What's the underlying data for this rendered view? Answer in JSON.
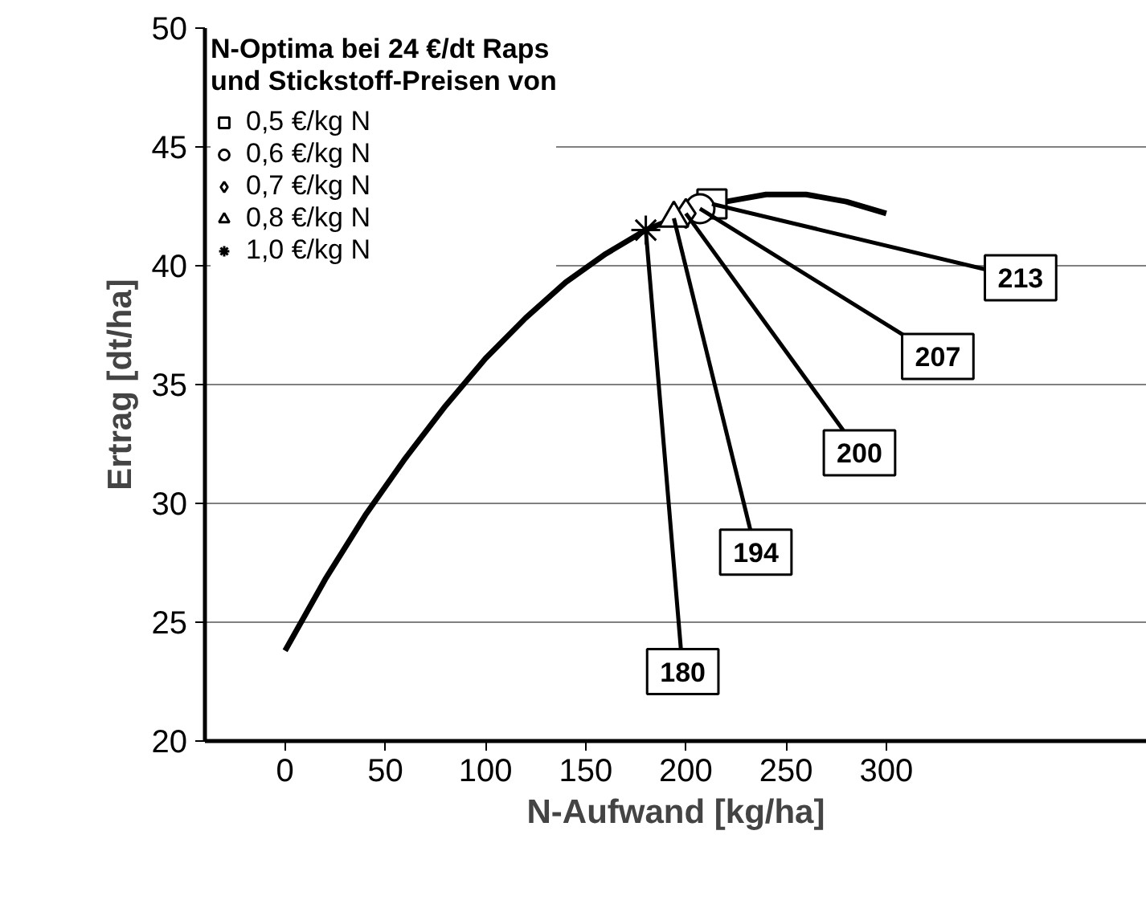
{
  "chart_data": {
    "type": "line",
    "xlabel": "N-Aufwand [kg/ha]",
    "ylabel": "Ertrag [dt/ha]",
    "legend_title": "N-Optima bei 24 €/dt Raps\nund Stickstoff-Preisen von",
    "xlim": [
      -40,
      430
    ],
    "ylim": [
      20,
      50
    ],
    "xticks": [
      0,
      50,
      100,
      150,
      200,
      250,
      300
    ],
    "yticks": [
      20,
      25,
      30,
      35,
      40,
      45,
      50
    ],
    "grid": "y",
    "legend": "top left",
    "annotations": [
      {
        "text": "213",
        "x": 213,
        "y": 42.6
      },
      {
        "text": "207",
        "x": 207,
        "y": 42.4
      },
      {
        "text": "200",
        "x": 200,
        "y": 42.2
      },
      {
        "text": "194",
        "x": 194,
        "y": 42.0
      },
      {
        "text": "180",
        "x": 180,
        "y": 41.5
      }
    ],
    "series": [
      {
        "color": "#000000",
        "marker": "none",
        "x": [
          0,
          20,
          40,
          60,
          80,
          100,
          120,
          140,
          160,
          180,
          200,
          220,
          240,
          260,
          280,
          300
        ],
        "values": [
          23.8,
          26.8,
          29.5,
          31.9,
          34.1,
          36.1,
          37.8,
          39.3,
          40.5,
          41.5,
          42.2,
          42.7,
          43.0,
          43.0,
          42.7,
          42.2
        ]
      },
      {
        "type": "scatter",
        "name": "0,5 €/kg N",
        "color": "#000000",
        "marker": "square",
        "x": [
          213
        ],
        "values": [
          42.6
        ]
      },
      {
        "type": "scatter",
        "name": "0,6 €/kg N",
        "color": "#000000",
        "marker": "circle",
        "x": [
          207
        ],
        "values": [
          42.4
        ]
      },
      {
        "type": "scatter",
        "name": "0,7 €/kg N",
        "color": "#000000",
        "marker": "diamond",
        "x": [
          200
        ],
        "values": [
          42.2
        ]
      },
      {
        "type": "scatter",
        "name": "0,8 €/kg N",
        "color": "#000000",
        "marker": "triangle",
        "x": [
          194
        ],
        "values": [
          42.0
        ]
      },
      {
        "type": "scatter",
        "name": "1,0 €/kg N",
        "color": "#000000",
        "marker": "cross",
        "x": [
          180
        ],
        "values": [
          41.5
        ]
      }
    ]
  }
}
